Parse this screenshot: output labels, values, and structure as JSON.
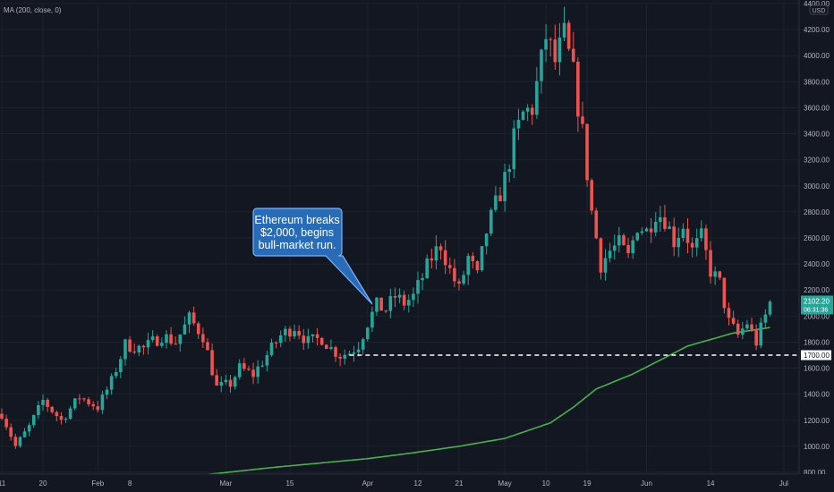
{
  "indicator_label": "MA (200, close, 0)",
  "currency_badge": "USD",
  "callout_text": [
    "Ethereum breaks",
    "$2,000, begins",
    "bull-market run."
  ],
  "colors": {
    "background": "#131722",
    "bull": "#26a69a",
    "bear": "#ef5350",
    "ma": "#4caf50",
    "grid": "#1e222d",
    "callout_fill": "#2a6bb8",
    "callout_border": "#7ab3ff"
  },
  "chart_data": {
    "type": "candlestick",
    "symbol_axis": "price",
    "ylim": [
      800,
      4400
    ],
    "y_ticks": [
      800,
      1000,
      1200,
      1400,
      1600,
      1800,
      2000,
      2200,
      2400,
      2600,
      2800,
      3000,
      3200,
      3400,
      3600,
      3800,
      4000,
      4200,
      4400
    ],
    "y_tick_labels": [
      "800.00",
      "1000.00",
      "1200.00",
      "1400.00",
      "1600.00",
      "1800.00",
      "2000.00",
      "2200.00",
      "2400.00",
      "2600.00",
      "2800.00",
      "3000.00",
      "3200.00",
      "3400.00",
      "3600.00",
      "3800.00",
      "4000.00",
      "4200.00",
      "4400.00"
    ],
    "x_tick_labels": [
      "11",
      "20",
      "Feb",
      "8",
      "Mar",
      "15",
      "Apr",
      "12",
      "21",
      "May",
      "10",
      "19",
      "Jun",
      "14",
      "Jul"
    ],
    "x_tick_day_index": [
      0,
      9,
      21,
      28,
      49,
      63,
      80,
      91,
      100,
      110,
      119,
      128,
      141,
      155,
      171
    ],
    "current_price": 2102.2,
    "current_price_label": "2102.20",
    "countdown_label": "06:31:36",
    "support_level": 1700,
    "support_label": "1700.00",
    "ma_period": 200,
    "ma_anchors_close": [
      [
        26,
        680
      ],
      [
        40,
        765
      ],
      [
        60,
        840
      ],
      [
        80,
        905
      ],
      [
        90,
        950
      ],
      [
        100,
        1000
      ],
      [
        110,
        1060
      ],
      [
        120,
        1180
      ],
      [
        125,
        1300
      ],
      [
        130,
        1440
      ],
      [
        138,
        1555
      ],
      [
        145,
        1680
      ],
      [
        150,
        1770
      ],
      [
        160,
        1870
      ],
      [
        168,
        1912
      ]
    ],
    "close_anchors": [
      [
        0,
        1250
      ],
      [
        3,
        1000
      ],
      [
        6,
        1150
      ],
      [
        9,
        1350
      ],
      [
        13,
        1200
      ],
      [
        17,
        1380
      ],
      [
        21,
        1300
      ],
      [
        24,
        1500
      ],
      [
        27,
        1780
      ],
      [
        31,
        1750
      ],
      [
        35,
        1850
      ],
      [
        38,
        1800
      ],
      [
        41,
        1980
      ],
      [
        44,
        1850
      ],
      [
        47,
        1450
      ],
      [
        50,
        1480
      ],
      [
        52,
        1600
      ],
      [
        55,
        1550
      ],
      [
        58,
        1700
      ],
      [
        61,
        1850
      ],
      [
        64,
        1920
      ],
      [
        67,
        1800
      ],
      [
        70,
        1830
      ],
      [
        72,
        1750
      ],
      [
        74,
        1700
      ],
      [
        76,
        1720
      ],
      [
        78,
        1780
      ],
      [
        80,
        1950
      ],
      [
        82,
        2080
      ],
      [
        84,
        2050
      ],
      [
        86,
        2150
      ],
      [
        88,
        2100
      ],
      [
        90,
        2150
      ],
      [
        92,
        2300
      ],
      [
        94,
        2450
      ],
      [
        96,
        2550
      ],
      [
        98,
        2350
      ],
      [
        100,
        2200
      ],
      [
        102,
        2450
      ],
      [
        104,
        2300
      ],
      [
        106,
        2650
      ],
      [
        108,
        2850
      ],
      [
        110,
        3050
      ],
      [
        112,
        3350
      ],
      [
        114,
        3550
      ],
      [
        116,
        3600
      ],
      [
        118,
        3950
      ],
      [
        119,
        4150
      ],
      [
        121,
        3950
      ],
      [
        123,
        4150
      ],
      [
        125,
        3850
      ],
      [
        127,
        3400
      ],
      [
        129,
        2800
      ],
      [
        131,
        2400
      ],
      [
        133,
        2500
      ],
      [
        135,
        2550
      ],
      [
        137,
        2450
      ],
      [
        139,
        2700
      ],
      [
        141,
        2650
      ],
      [
        143,
        2800
      ],
      [
        145,
        2750
      ],
      [
        147,
        2580
      ],
      [
        149,
        2700
      ],
      [
        151,
        2500
      ],
      [
        153,
        2600
      ],
      [
        155,
        2350
      ],
      [
        157,
        2250
      ],
      [
        159,
        1950
      ],
      [
        161,
        1850
      ],
      [
        163,
        1950
      ],
      [
        165,
        1800
      ],
      [
        167,
        2000
      ],
      [
        168,
        2102
      ]
    ]
  }
}
